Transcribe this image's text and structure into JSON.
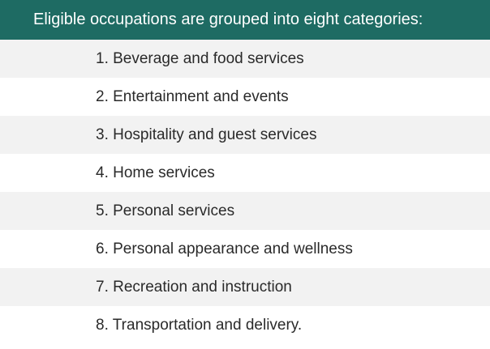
{
  "header": {
    "title": "Eligible occupations are grouped into eight categories:"
  },
  "categories": [
    "1. Beverage and food services",
    "2. Entertainment and events",
    "3. Hospitality and guest services",
    "4. Home services",
    "5. Personal services",
    "6. Personal appearance and wellness",
    "7. Recreation and instruction",
    "8. Transportation and delivery."
  ],
  "colors": {
    "header_background": "#1e6b63",
    "header_text": "#ffffff",
    "row_shaded": "#f2f2f2",
    "row_plain": "#ffffff",
    "body_text": "#2a2a2a"
  }
}
